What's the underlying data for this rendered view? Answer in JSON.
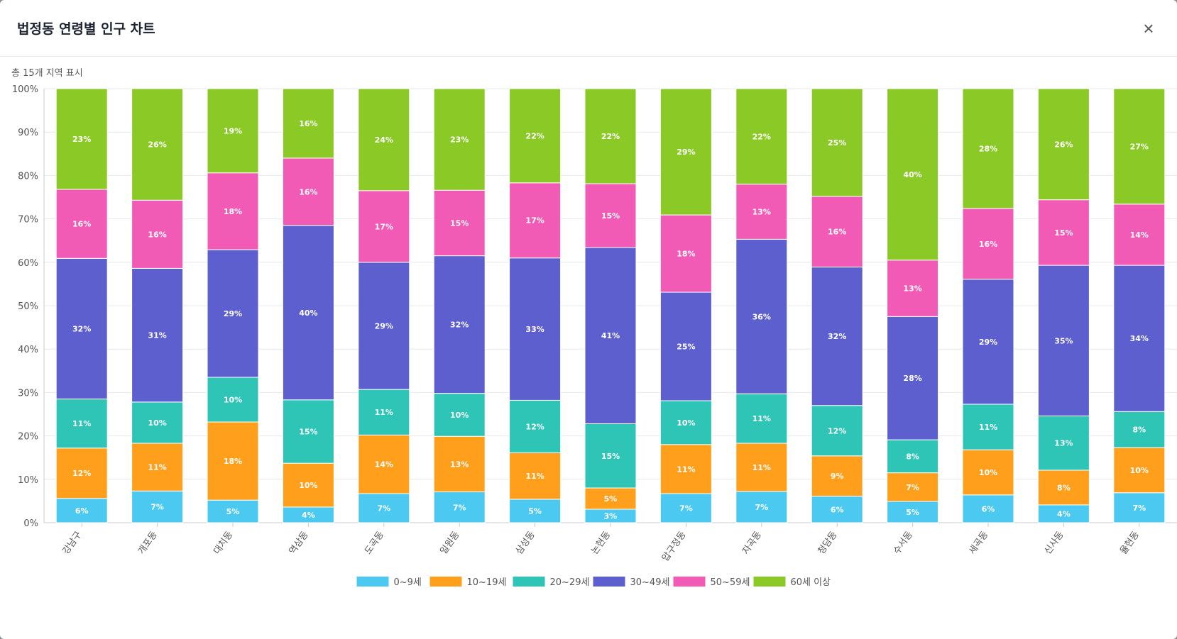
{
  "modal": {
    "title": "법정동 연령별 인구 차트",
    "close_label": "×",
    "summary": "총 15개 지역 표시"
  },
  "chart_data": {
    "type": "bar",
    "stacked": true,
    "percent": true,
    "ylim": [
      0,
      100
    ],
    "yticks": [
      "0%",
      "10%",
      "20%",
      "30%",
      "40%",
      "50%",
      "60%",
      "70%",
      "80%",
      "90%",
      "100%"
    ],
    "categories": [
      "강남구",
      "개포동",
      "대치동",
      "역삼동",
      "도곡동",
      "일원동",
      "삼성동",
      "논현동",
      "압구정동",
      "자곡동",
      "청담동",
      "수서동",
      "세곡동",
      "신사동",
      "율현동"
    ],
    "legend_position": "bottom",
    "series": [
      {
        "name": "0~9세",
        "color": "#4cc9f0",
        "values": [
          5.6,
          7.3,
          5.2,
          3.6,
          6.7,
          7.1,
          5.4,
          3.1,
          6.7,
          7.2,
          6.1,
          4.9,
          6.4,
          4.1,
          6.9
        ]
      },
      {
        "name": "10~19세",
        "color": "#ff9f1c",
        "values": [
          11.6,
          11.0,
          18.0,
          10.1,
          13.5,
          12.8,
          10.7,
          4.9,
          11.3,
          11.1,
          9.3,
          6.6,
          10.4,
          8.0,
          10.4
        ]
      },
      {
        "name": "20~29세",
        "color": "#2ec4b6",
        "values": [
          11.3,
          9.5,
          10.3,
          14.6,
          10.5,
          9.9,
          12.1,
          14.8,
          10.1,
          11.4,
          11.6,
          7.6,
          10.5,
          12.5,
          8.3
        ]
      },
      {
        "name": "30~49세",
        "color": "#5e5fcf",
        "values": [
          32.4,
          30.8,
          29.4,
          40.2,
          29.3,
          31.7,
          32.8,
          40.6,
          25.0,
          35.6,
          31.9,
          28.4,
          28.8,
          34.7,
          33.7
        ]
      },
      {
        "name": "50~59세",
        "color": "#f15bb5",
        "values": [
          15.9,
          15.7,
          17.7,
          15.5,
          16.5,
          15.1,
          17.3,
          14.7,
          17.8,
          12.7,
          16.3,
          13.0,
          16.3,
          15.1,
          14.1
        ]
      },
      {
        "name": "60세 이상",
        "color": "#8ac926",
        "values": [
          23.2,
          25.7,
          19.4,
          16.0,
          23.5,
          23.4,
          21.7,
          21.9,
          29.1,
          22.0,
          24.8,
          39.5,
          27.6,
          25.6,
          26.6
        ]
      }
    ]
  }
}
